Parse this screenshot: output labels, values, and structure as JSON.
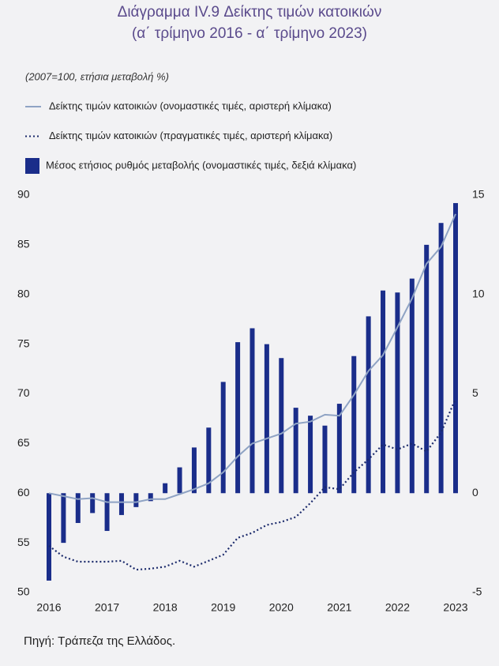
{
  "chart_data": {
    "type": "combo",
    "title": "Διάγραμμα IV.9 Δείκτης τιμών κατοικιών",
    "subtitle": "(α΄ τρίμηνο 2016 - α΄ τρίμηνο 2023)",
    "y_label": "(2007=100, ετήσια μεταβολή %)",
    "source": "Πηγή: Τράπεζα της Ελλάδος.",
    "categories": [
      "2016",
      null,
      null,
      null,
      "2017",
      null,
      null,
      null,
      "2018",
      null,
      null,
      null,
      "2019",
      null,
      null,
      null,
      "2020",
      null,
      null,
      null,
      "2021",
      null,
      null,
      null,
      "2022",
      null,
      null,
      null,
      "2023"
    ],
    "ylim": [
      50,
      90
    ],
    "yticks": [
      50,
      55,
      60,
      65,
      70,
      75,
      80,
      85,
      90
    ],
    "y2lim": [
      -5,
      15
    ],
    "y2ticks": [
      -5,
      0,
      5,
      10,
      15
    ],
    "series": [
      {
        "name": "Δείκτης τιμών κατοικιών (ονομαστικές τιμές, αριστερή κλίμακα)",
        "type": "line",
        "linestyle": "solid",
        "color": "#8fa3c4",
        "values": [
          60.0,
          59.7,
          59.4,
          59.5,
          59.1,
          59.1,
          59.1,
          59.4,
          59.4,
          59.9,
          60.4,
          61.0,
          62.1,
          63.7,
          65.0,
          65.5,
          66.0,
          67.0,
          67.2,
          67.9,
          67.8,
          69.9,
          72.3,
          73.9,
          76.7,
          79.6,
          83.1,
          84.8,
          88.1
        ]
      },
      {
        "name": "Δείκτης τιμών κατοικιών (πραγματικές τιμές, αριστερή κλίμακα)",
        "type": "line",
        "linestyle": "dotted",
        "color": "#1b2a6b",
        "values": [
          54.7,
          53.6,
          53.1,
          53.1,
          53.1,
          53.2,
          52.3,
          52.4,
          52.6,
          53.2,
          52.6,
          53.2,
          53.8,
          55.5,
          56.0,
          56.8,
          57.1,
          57.6,
          59.0,
          60.6,
          60.4,
          62.1,
          63.4,
          64.9,
          64.4,
          65.0,
          64.2,
          66.1,
          69.5
        ]
      },
      {
        "name": "Μέσος ετήσιος ρυθμός μεταβολής (ονομαστικές τιμές, δεξιά κλίμακα)",
        "type": "bar",
        "axis": "y2",
        "color": "#1a2d8a",
        "values": [
          -4.4,
          -2.5,
          -1.5,
          -1.0,
          -1.9,
          -1.1,
          -0.7,
          -0.4,
          0.5,
          1.3,
          2.3,
          3.3,
          5.6,
          7.6,
          8.3,
          7.5,
          6.8,
          4.3,
          3.9,
          3.4,
          4.5,
          6.9,
          8.9,
          10.2,
          10.1,
          10.8,
          12.5,
          13.6,
          14.6
        ]
      }
    ]
  }
}
